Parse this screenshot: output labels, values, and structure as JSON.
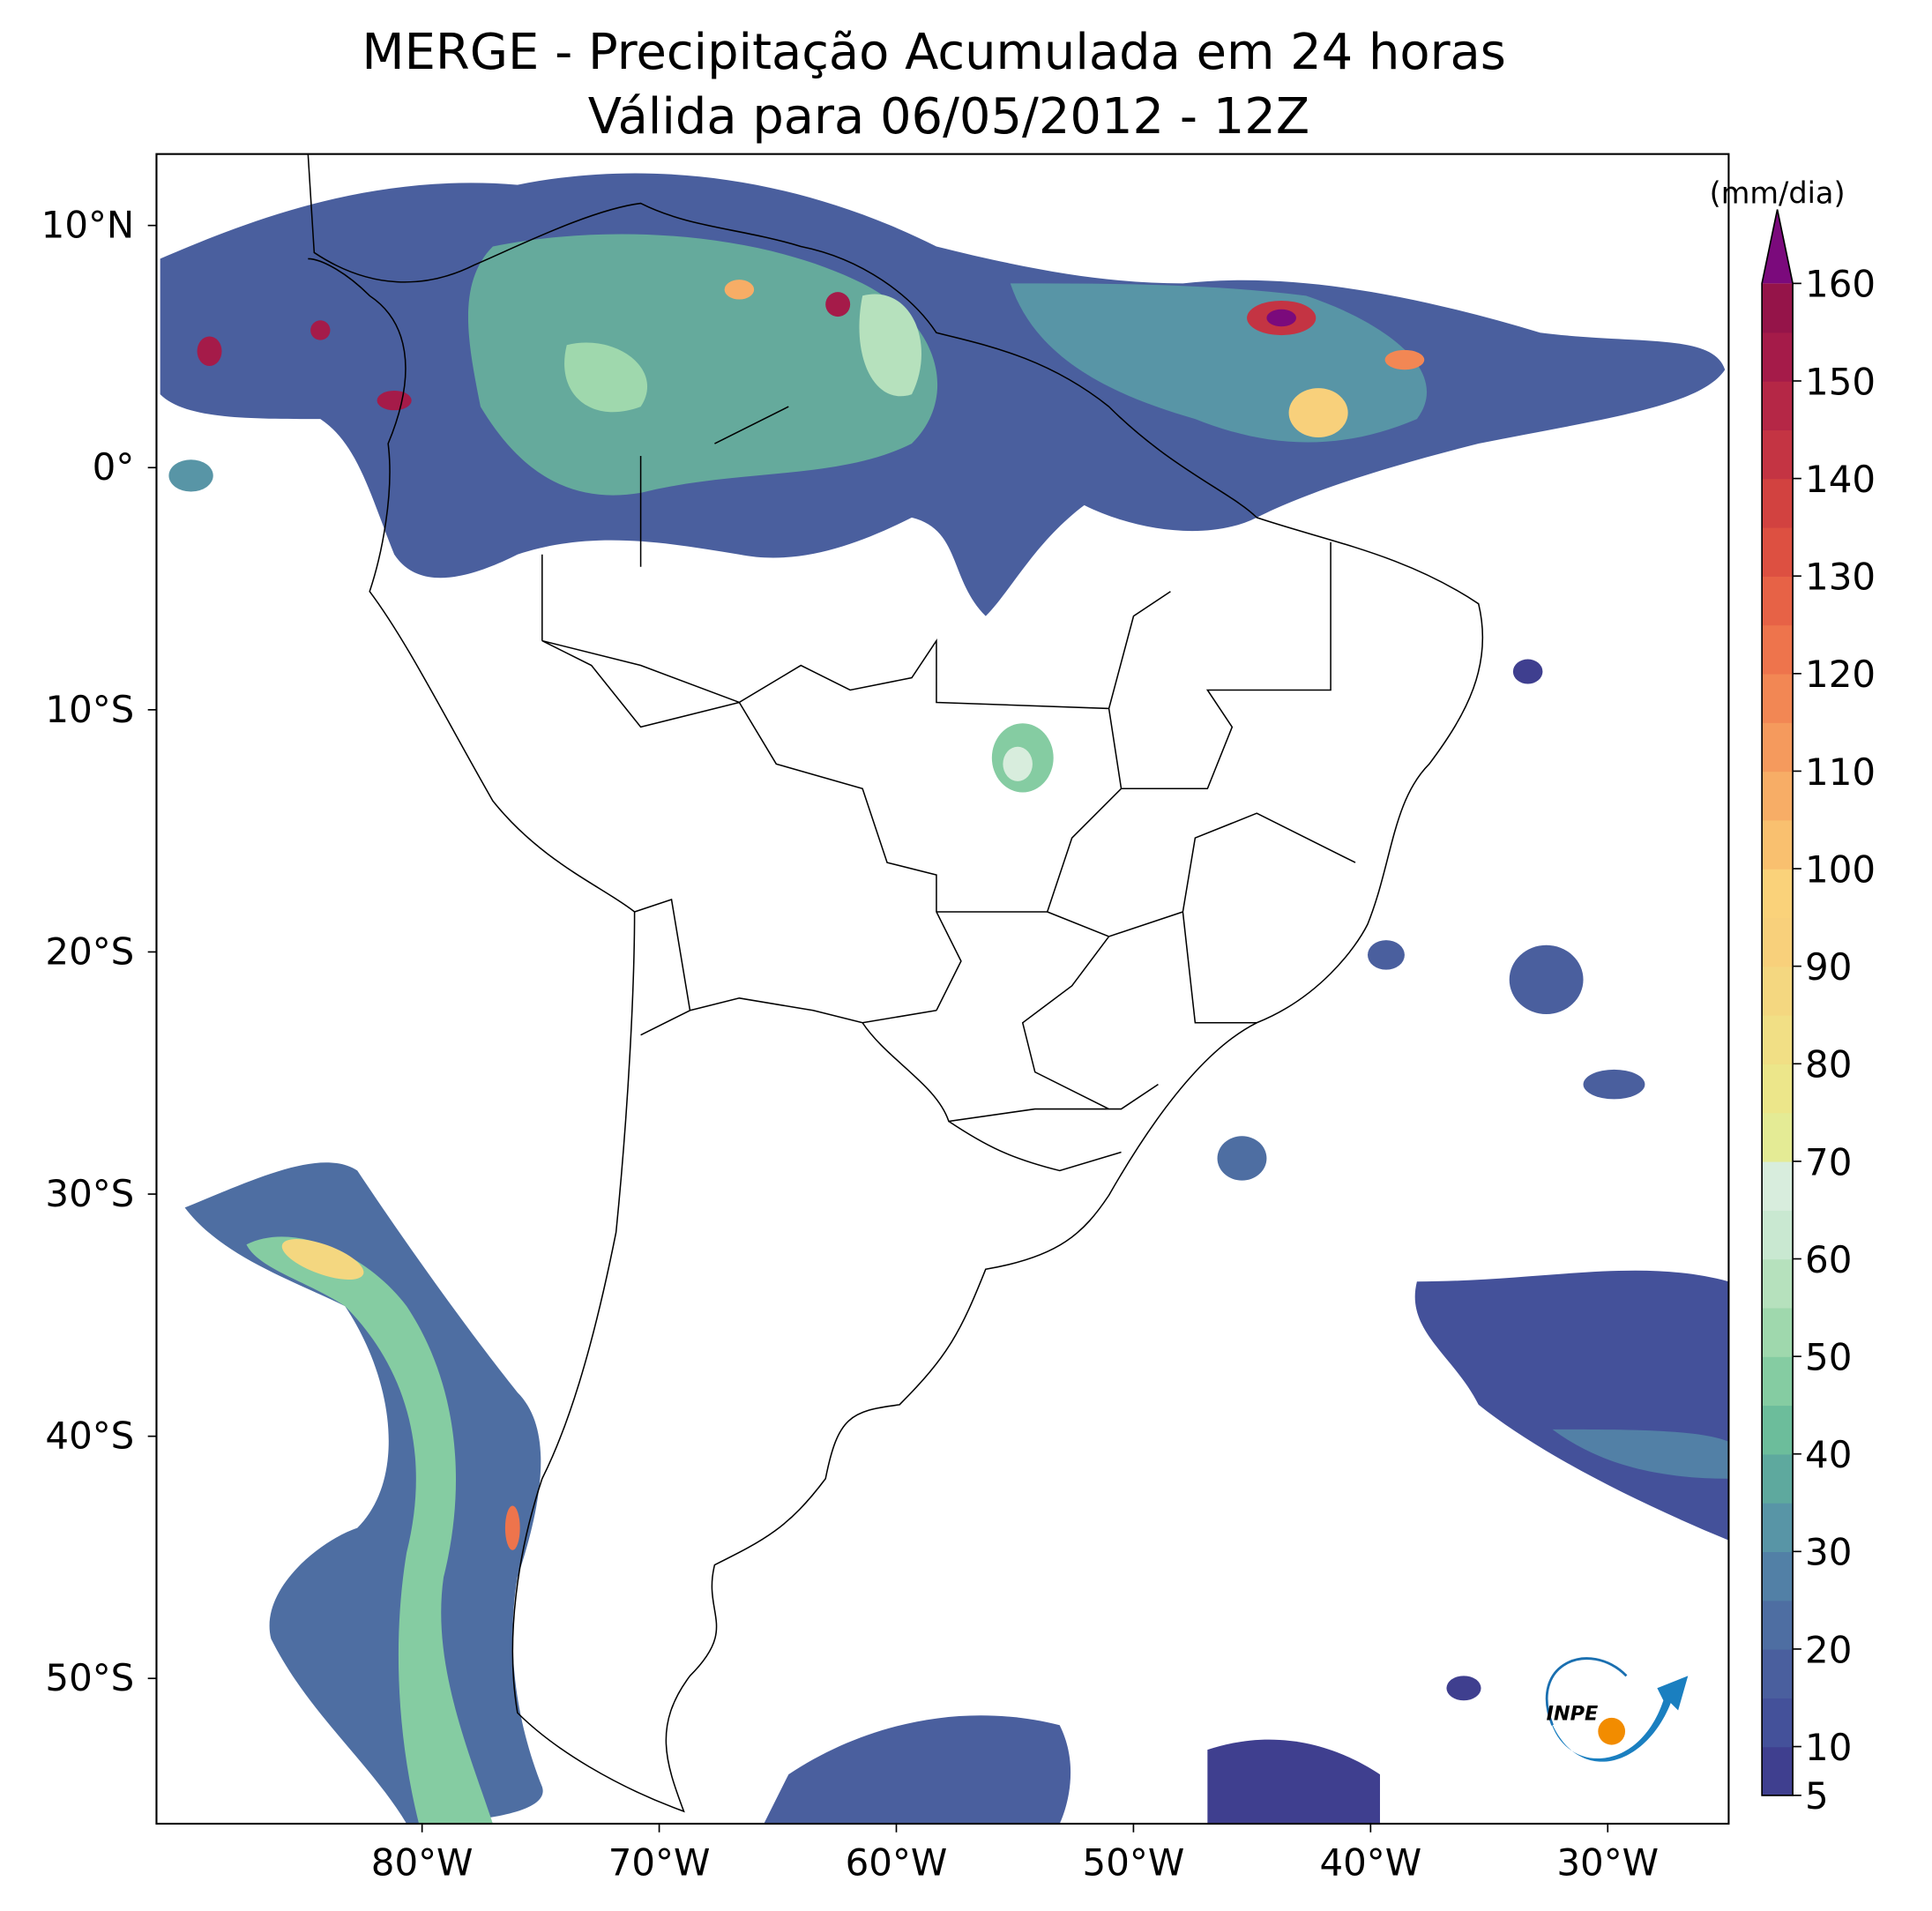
{
  "title": "MERGE - Precipitação Acumulada em 24 horas",
  "subtitle": "Válida para 06/05/2012 - 12Z",
  "map": {
    "lon_range": [
      -91.2,
      -24.9
    ],
    "lat_range": [
      -56,
      12.95
    ],
    "lon_ticks": [
      {
        "value": -80,
        "label": "80°W"
      },
      {
        "value": -70,
        "label": "70°W"
      },
      {
        "value": -60,
        "label": "60°W"
      },
      {
        "value": -50,
        "label": "50°W"
      },
      {
        "value": -40,
        "label": "40°W"
      },
      {
        "value": -30,
        "label": "30°W"
      }
    ],
    "lat_ticks": [
      {
        "value": 10,
        "label": "10°N"
      },
      {
        "value": 0,
        "label": "0°"
      },
      {
        "value": -10,
        "label": "10°S"
      },
      {
        "value": -20,
        "label": "20°S"
      },
      {
        "value": -30,
        "label": "30°S"
      },
      {
        "value": -40,
        "label": "40°S"
      },
      {
        "value": -50,
        "label": "50°S"
      }
    ]
  },
  "colorbar": {
    "label": "(mm/dia)",
    "range": [
      5,
      160
    ],
    "ticks": [
      5,
      10,
      20,
      30,
      40,
      50,
      60,
      70,
      80,
      90,
      100,
      110,
      120,
      130,
      140,
      150,
      160
    ],
    "colors": [
      "#3f3f8f",
      "#44519a",
      "#4a5f9e",
      "#4e6ea2",
      "#5280a6",
      "#5895a6",
      "#5ea99e",
      "#6cbd9b",
      "#85cca2",
      "#9fd8ad",
      "#b6e1bd",
      "#c9e8d1",
      "#d8eddd",
      "#e4eb95",
      "#ece68a",
      "#f1df85",
      "#f4d780",
      "#f8d07b",
      "#fad27a",
      "#f9c06f",
      "#f7ad66",
      "#f59a5d",
      "#f28754",
      "#ee744c",
      "#e76246",
      "#dd5041",
      "#d24240",
      "#c43443",
      "#b52746",
      "#a51b49",
      "#951449"
    ],
    "extend_color": "#7b0a7c"
  },
  "logo": "INPE"
}
